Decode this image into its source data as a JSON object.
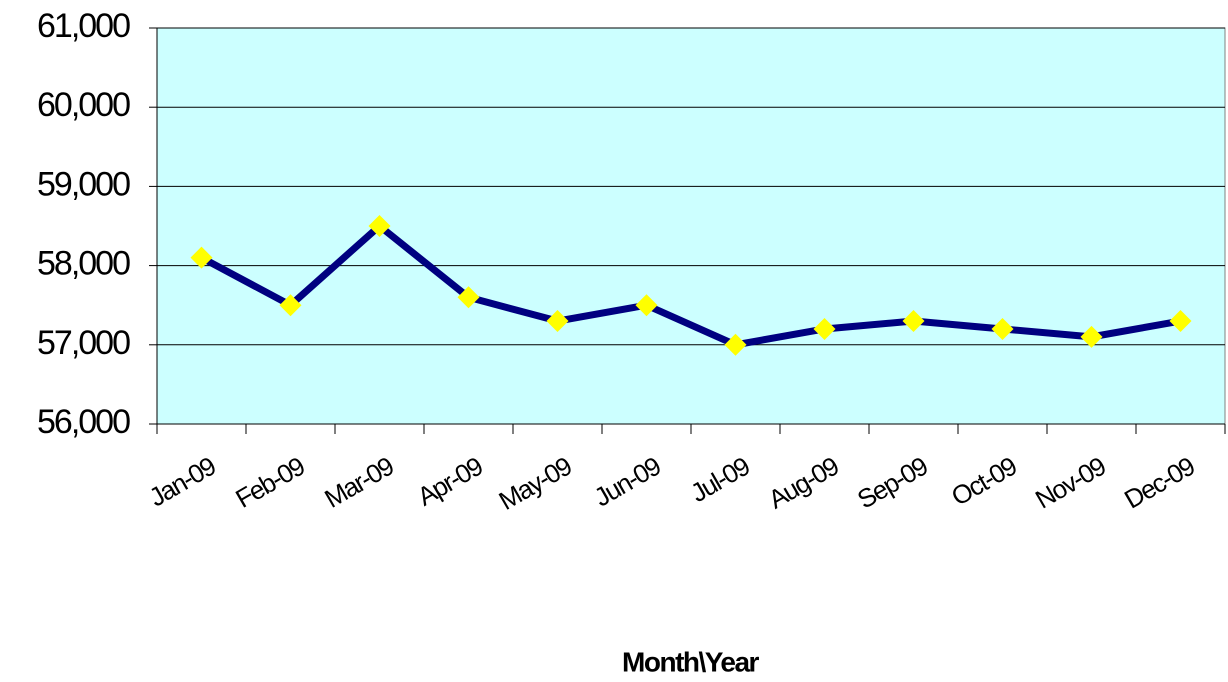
{
  "chart_data": {
    "type": "line",
    "x_label": "Month\\Year",
    "categories": [
      "Jan-09",
      "Feb-09",
      "Mar-09",
      "Apr-09",
      "May-09",
      "Jun-09",
      "Jul-09",
      "Aug-09",
      "Sep-09",
      "Oct-09",
      "Nov-09",
      "Dec-09"
    ],
    "values": [
      58100,
      57500,
      58500,
      57600,
      57300,
      57500,
      57000,
      57200,
      57300,
      57200,
      57100,
      57300
    ],
    "color": "#000080",
    "marker_color": "#ffff00",
    "plot_background": "#ccffff",
    "ylim": [
      56000,
      61000
    ],
    "yticks": [
      {
        "value": 56000,
        "label": "56,000"
      },
      {
        "value": 57000,
        "label": "57,000"
      },
      {
        "value": 58000,
        "label": "58,000"
      },
      {
        "value": 59000,
        "label": "59,000"
      },
      {
        "value": 60000,
        "label": "60,000"
      },
      {
        "value": 61000,
        "label": "61,000"
      }
    ],
    "grid": true
  }
}
